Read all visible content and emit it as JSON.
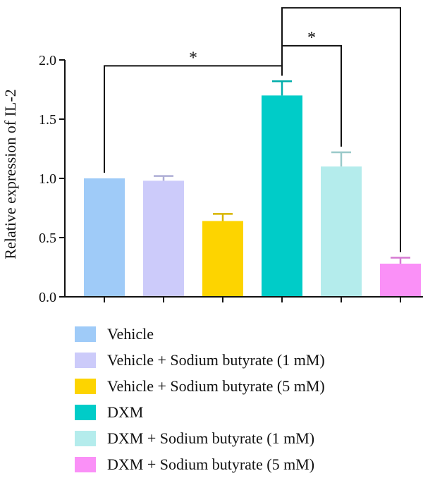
{
  "chart_data": {
    "type": "bar",
    "title": "",
    "xlabel": "",
    "ylabel": "Relative expression of IL-2",
    "ylim": [
      0,
      2.0
    ],
    "yticks": [
      0.0,
      0.5,
      1.0,
      1.5,
      2.0
    ],
    "ytick_labels": [
      "0.0",
      "0.5",
      "1.0",
      "1.5",
      "2.0"
    ],
    "legend_position": "bottom",
    "grid": false,
    "categories": [
      "Vehicle",
      "Vehicle + Sodium butyrate (1 mM)",
      "Vehicle + Sodium butyrate (5 mM)",
      "DXM",
      "DXM + Sodium butyrate (1 mM)",
      "DXM + Sodium butyrate (5 mM)"
    ],
    "values": [
      1.0,
      0.98,
      0.64,
      1.7,
      1.1,
      0.28
    ],
    "errors": [
      0.0,
      0.04,
      0.06,
      0.12,
      0.12,
      0.05
    ],
    "colors": [
      "#9fcbf8",
      "#cccbfa",
      "#fdd400",
      "#00ccc8",
      "#b4ecec",
      "#fa90f7"
    ],
    "significance": [
      {
        "from": 0,
        "to": 3,
        "y": 1.95,
        "label": "*"
      },
      {
        "from": 3,
        "to": 4,
        "y": 2.12,
        "label": "*"
      },
      {
        "from": 3,
        "to": 5,
        "y": 2.44,
        "label": "*"
      }
    ]
  }
}
